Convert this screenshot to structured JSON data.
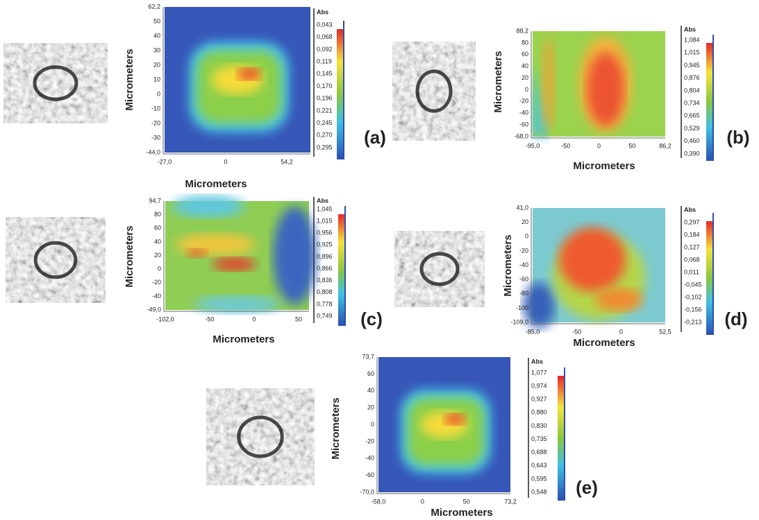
{
  "panels": [
    {
      "label": "(a)",
      "x_label": "Micrometers",
      "y_label": "Micrometers",
      "yticks": [
        "62,2",
        "50",
        "40",
        "30",
        "20",
        "10",
        "0",
        "-10",
        "-20",
        "-30",
        "-44,0"
      ],
      "xticks": [
        "-27,0",
        "0",
        "54,2"
      ],
      "colorbar_title": "Abs",
      "colorbar_ticks": [
        "0,043",
        "0,068",
        "0,092",
        "0,119",
        "0,145",
        "0,170",
        "0,196",
        "0,221",
        "0,245",
        "0,270",
        "0,295"
      ]
    },
    {
      "label": "(b)",
      "x_label": "Micrometers",
      "y_label": "Micrometers",
      "yticks": [
        "88,2",
        "80",
        "60",
        "40",
        "20",
        "0",
        "-20",
        "-40",
        "-60",
        "-68,0"
      ],
      "xticks": [
        "-95,0",
        "-50",
        "0",
        "50",
        "86,2"
      ],
      "colorbar_title": "Abs",
      "colorbar_ticks": [
        "1,084",
        "1,015",
        "0,945",
        "0,876",
        "0,804",
        "0,734",
        "0,665",
        "0,529",
        "0,460",
        "0,390"
      ]
    },
    {
      "label": "(c)",
      "x_label": "Micrometers",
      "y_label": "Micrometers",
      "yticks": [
        "94,7",
        "80",
        "60",
        "40",
        "20",
        "0",
        "-20",
        "-40",
        "-49,0"
      ],
      "xticks": [
        "-102,0",
        "-50",
        "0",
        "50"
      ],
      "colorbar_title": "Abs",
      "colorbar_ticks": [
        "1,045",
        "1,015",
        "0,956",
        "0,925",
        "0,896",
        "0,866",
        "0,836",
        "0,808",
        "0,778",
        "0,749"
      ]
    },
    {
      "label": "(d)",
      "x_label": "Micrometers",
      "y_label": "Micrometers",
      "yticks": [
        "41,0",
        "20",
        "0",
        "-20",
        "-40",
        "-60",
        "-80",
        "-100",
        "-109,0"
      ],
      "xticks": [
        "-85,0",
        "-50",
        "0",
        "52,5"
      ],
      "colorbar_title": "Abs",
      "colorbar_ticks": [
        "0,297",
        "0,184",
        "0,127",
        "0,068",
        "0,011",
        "-0,045",
        "-0,102",
        "-0,156",
        "-0,213"
      ]
    },
    {
      "label": "(e)",
      "x_label": "Micrometers",
      "y_label": "Micrometers",
      "yticks": [
        "73,7",
        "60",
        "40",
        "20",
        "0",
        "-20",
        "-40",
        "-60",
        "-70,0"
      ],
      "xticks": [
        "-58,0",
        "0",
        "50",
        "73,2"
      ],
      "colorbar_title": "Abs",
      "colorbar_ticks": [
        "1,077",
        "0,974",
        "0,927",
        "0,880",
        "0,830",
        "0,735",
        "0,688",
        "0,643",
        "0,595",
        "0,548"
      ]
    }
  ]
}
